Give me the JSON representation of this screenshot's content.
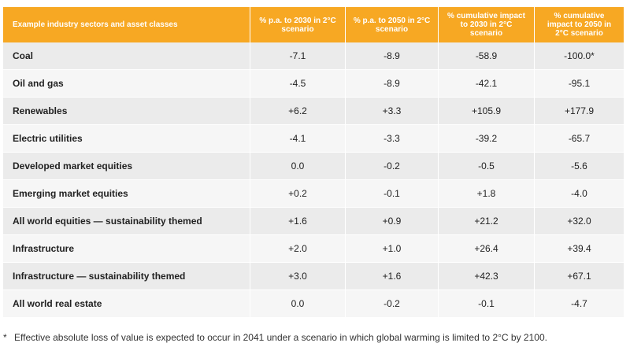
{
  "table": {
    "headers": [
      "Example industry sectors and asset classes",
      "% p.a. to 2030 in 2°C scenario",
      "% p.a. to 2050 in 2°C scenario",
      "% cumulative impact to 2030 in 2°C scenario",
      "% cumulative impact to 2050 in 2°C scenario"
    ],
    "rows": [
      {
        "label": "Coal",
        "values": [
          "-7.1",
          "-8.9",
          "-58.9",
          "-100.0*"
        ]
      },
      {
        "label": "Oil and gas",
        "values": [
          "-4.5",
          "-8.9",
          "-42.1",
          "-95.1"
        ]
      },
      {
        "label": "Renewables",
        "values": [
          "+6.2",
          "+3.3",
          "+105.9",
          "+177.9"
        ]
      },
      {
        "label": "Electric utilities",
        "values": [
          "-4.1",
          "-3.3",
          "-39.2",
          "-65.7"
        ]
      },
      {
        "label": "Developed market equities",
        "values": [
          "0.0",
          "-0.2",
          "-0.5",
          "-5.6"
        ]
      },
      {
        "label": "Emerging market equities",
        "values": [
          "+0.2",
          "-0.1",
          "+1.8",
          "-4.0"
        ]
      },
      {
        "label": "All world equities — sustainability themed",
        "values": [
          "+1.6",
          "+0.9",
          "+21.2",
          "+32.0"
        ]
      },
      {
        "label": "Infrastructure",
        "values": [
          "+2.0",
          "+1.0",
          "+26.4",
          "+39.4"
        ]
      },
      {
        "label": "Infrastructure — sustainability themed",
        "values": [
          "+3.0",
          "+1.6",
          "+42.3",
          "+67.1"
        ]
      },
      {
        "label": "All world real estate",
        "values": [
          "0.0",
          "-0.2",
          "-0.1",
          "-4.7"
        ]
      }
    ]
  },
  "footnote": {
    "marker": "*",
    "text": "Effective absolute loss of value is expected to occur in 2041 under a scenario in which global warming is limited to 2°C by 2100."
  },
  "colors": {
    "header_bg": "#f7a823",
    "row_odd": "#ebebeb",
    "row_even": "#f6f6f6"
  }
}
